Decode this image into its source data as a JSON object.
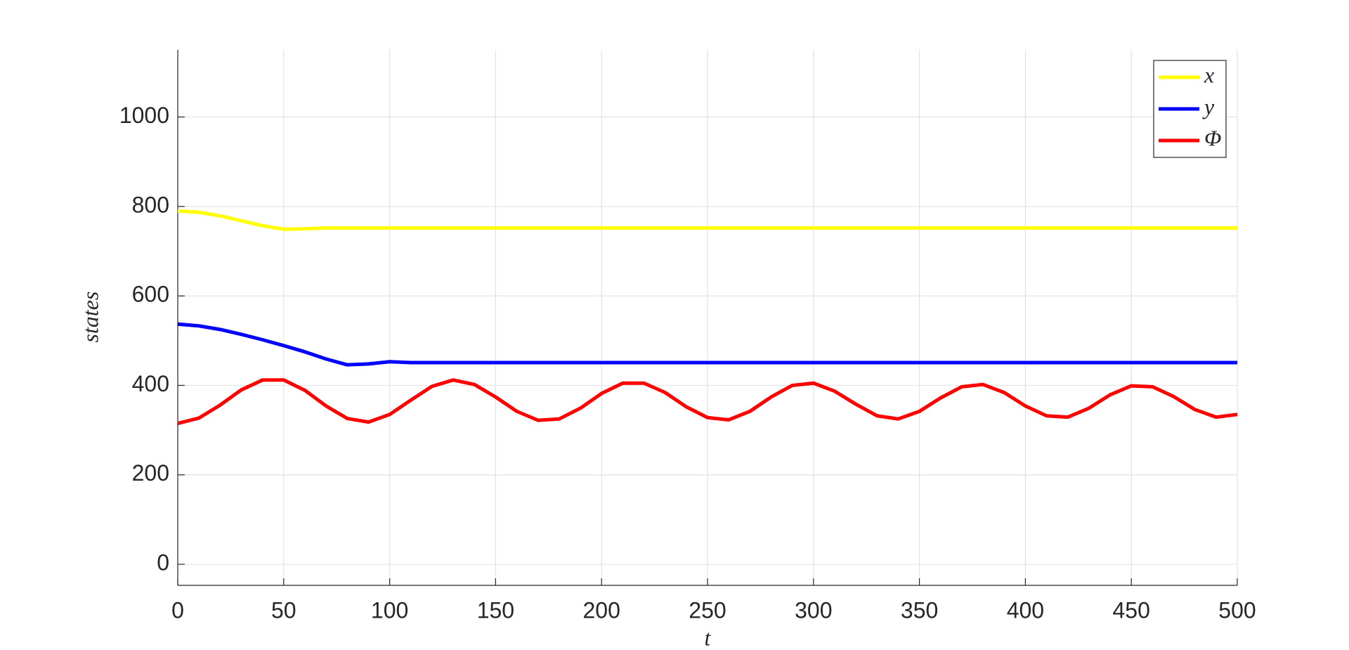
{
  "chart_data": {
    "type": "line",
    "x_label": "t",
    "y_label": "states",
    "x": [
      0,
      10,
      20,
      30,
      40,
      50,
      60,
      70,
      80,
      90,
      100,
      110,
      120,
      130,
      140,
      150,
      160,
      170,
      180,
      190,
      200,
      210,
      220,
      230,
      240,
      250,
      260,
      270,
      280,
      290,
      300,
      310,
      320,
      330,
      340,
      350,
      360,
      370,
      380,
      390,
      400,
      410,
      420,
      430,
      440,
      450,
      460,
      470,
      480,
      490,
      500
    ],
    "series": [
      {
        "name": "x",
        "color": "#ffff00",
        "values": [
          790,
          787,
          779,
          768,
          757,
          749,
          750,
          752,
          752,
          752,
          752,
          752,
          752,
          752,
          752,
          752,
          752,
          752,
          752,
          752,
          752,
          752,
          752,
          752,
          752,
          752,
          752,
          752,
          752,
          752,
          752,
          752,
          752,
          752,
          752,
          752,
          752,
          752,
          752,
          752,
          752,
          752,
          752,
          752,
          752,
          752,
          752,
          752,
          752,
          752,
          752
        ]
      },
      {
        "name": "y",
        "color": "#0000ff",
        "values": [
          537,
          533,
          525,
          514,
          502,
          489,
          475,
          459,
          446,
          448,
          453,
          451,
          451,
          451,
          451,
          451,
          451,
          451,
          451,
          451,
          451,
          451,
          451,
          451,
          451,
          451,
          451,
          451,
          451,
          451,
          451,
          451,
          451,
          451,
          451,
          451,
          451,
          451,
          451,
          451,
          451,
          451,
          451,
          451,
          451,
          451,
          451,
          451,
          451,
          451,
          451
        ]
      },
      {
        "name": "Φ",
        "color": "#ff0000",
        "values": [
          315,
          327,
          356,
          390,
          412,
          412,
          389,
          354,
          326,
          318,
          335,
          367,
          398,
          412,
          402,
          374,
          342,
          322,
          325,
          349,
          382,
          405,
          405,
          384,
          352,
          328,
          323,
          342,
          374,
          400,
          405,
          387,
          358,
          332,
          325,
          342,
          372,
          397,
          402,
          384,
          354,
          332,
          329,
          349,
          379,
          399,
          397,
          375,
          346,
          329,
          335
        ]
      }
    ],
    "xlim": [
      0,
      500
    ],
    "xticks": [
      0,
      50,
      100,
      150,
      200,
      250,
      300,
      350,
      400,
      450,
      500
    ],
    "ylim": [
      -47,
      1150
    ],
    "yticks": [
      0,
      200,
      400,
      600,
      800,
      1000
    ],
    "grid": true,
    "legend": "top-right"
  }
}
